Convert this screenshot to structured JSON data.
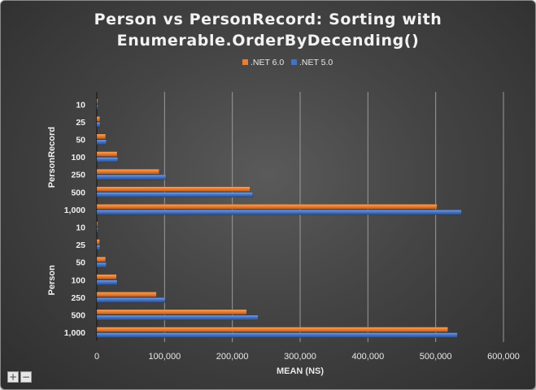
{
  "chart_data": {
    "type": "bar",
    "orientation": "horizontal",
    "title_lines": [
      "Person vs PersonRecord: Sorting with",
      "Enumerable.OrderByDecending()"
    ],
    "xlabel": "MEAN (NS)",
    "xlim": [
      0,
      600000
    ],
    "x_ticks": [
      "0",
      "100,000",
      "200,000",
      "300,000",
      "400,000",
      "500,000",
      "600,000"
    ],
    "legend_position": "top-center",
    "grid": true,
    "groups": [
      {
        "name": "PersonRecord",
        "categories": [
          "10",
          "25",
          "50",
          "100",
          "250",
          "500",
          "1,000"
        ],
        "series": [
          {
            "name": ".NET 6.0",
            "color": "#ed7d31",
            "values": [
              1500,
              4500,
              13000,
              30000,
              92000,
              226000,
              502000
            ]
          },
          {
            "name": ".NET 5.0",
            "color": "#4472c4",
            "values": [
              1600,
              4800,
              14000,
              31000,
              102000,
              230000,
              538000
            ]
          }
        ]
      },
      {
        "name": "Person",
        "categories": [
          "10",
          "25",
          "50",
          "100",
          "250",
          "500",
          "1,000"
        ],
        "series": [
          {
            "name": ".NET 6.0",
            "color": "#ed7d31",
            "values": [
              1400,
              4200,
              13000,
              29000,
              88000,
              221000,
              518000
            ]
          },
          {
            "name": ".NET 5.0",
            "color": "#4472c4",
            "values": [
              1500,
              4600,
              14000,
              30000,
              101000,
              238000,
              532000
            ]
          }
        ]
      }
    ],
    "legend": [
      {
        "name": ".NET 6.0",
        "color": "#ed7d31"
      },
      {
        "name": ".NET 5.0",
        "color": "#4472c4"
      }
    ]
  },
  "zoom_controls": {
    "plus": "+",
    "minus": "−"
  }
}
